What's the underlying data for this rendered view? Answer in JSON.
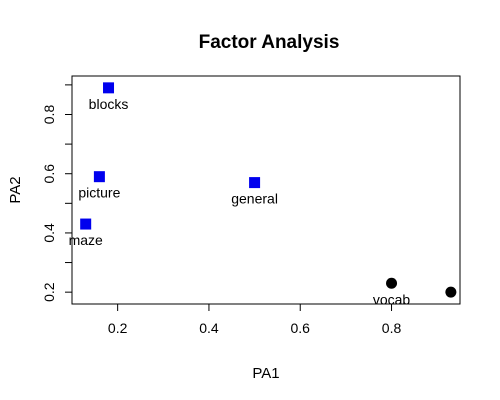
{
  "chart_data": {
    "type": "scatter",
    "title": "Factor Analysis",
    "xlabel": "PA1",
    "ylabel": "PA2",
    "xlim": [
      0.1,
      0.95
    ],
    "ylim": [
      0.16,
      0.93
    ],
    "xticks": [
      {
        "value": 0.2,
        "label": "0.2"
      },
      {
        "value": 0.4,
        "label": "0.4"
      },
      {
        "value": 0.6,
        "label": "0.6"
      },
      {
        "value": 0.8,
        "label": "0.8"
      }
    ],
    "yticks": [
      {
        "value": 0.2,
        "label": "0.2"
      },
      {
        "value": 0.3,
        "label": ""
      },
      {
        "value": 0.4,
        "label": "0.4"
      },
      {
        "value": 0.5,
        "label": ""
      },
      {
        "value": 0.6,
        "label": "0.6"
      },
      {
        "value": 0.7,
        "label": ""
      },
      {
        "value": 0.8,
        "label": "0.8"
      },
      {
        "value": 0.9,
        "label": ""
      }
    ],
    "grid": false,
    "points": [
      {
        "label": "blocks",
        "x": 0.18,
        "y": 0.89,
        "shape": "square",
        "color": "#0000ee"
      },
      {
        "label": "picture",
        "x": 0.16,
        "y": 0.59,
        "shape": "square",
        "color": "#0000ee"
      },
      {
        "label": "general",
        "x": 0.5,
        "y": 0.57,
        "shape": "square",
        "color": "#0000ee"
      },
      {
        "label": "maze",
        "x": 0.13,
        "y": 0.43,
        "shape": "square",
        "color": "#0000ee"
      },
      {
        "label": "vocab",
        "x": 0.8,
        "y": 0.23,
        "shape": "circle",
        "color": "#000000"
      },
      {
        "label": "",
        "x": 0.93,
        "y": 0.2,
        "shape": "circle",
        "color": "#000000"
      }
    ]
  }
}
